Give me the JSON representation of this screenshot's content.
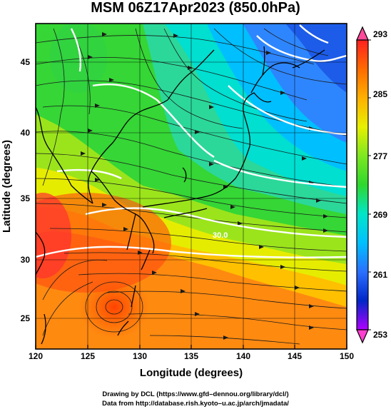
{
  "title": "MSM 06Z17Apr2023 (850.0hPa)",
  "map": {
    "xlabel": "Longitude (degrees)",
    "ylabel": "Latitude  (degrees)",
    "lon_ticks": [
      "120",
      "125",
      "130",
      "135",
      "140",
      "145",
      "150"
    ],
    "lat_ticks": [
      "25",
      "30",
      "35",
      "40",
      "45"
    ],
    "lon_range": [
      120,
      150
    ],
    "lat_range": [
      22.4,
      47.6
    ],
    "contour_labels": [
      "30.0"
    ],
    "field": "temperature",
    "overlay": "streamlines"
  },
  "colorbar": {
    "ticks": [
      "293",
      "285",
      "277",
      "269",
      "261",
      "253"
    ],
    "range": [
      253,
      293
    ],
    "colors": [
      "#ff3fa0",
      "#ff1a1a",
      "#ff6a00",
      "#ffb000",
      "#ffe600",
      "#b8f000",
      "#2ed82e",
      "#00e6c8",
      "#00c8ff",
      "#2a78ff",
      "#0026c8",
      "#b000ff"
    ]
  },
  "credits": {
    "line1": "Drawing by DCL (https://www.gfd–dennou.org/library/dcl/)",
    "line2": "Data from http://database.rish.kyoto–u.ac.jp/arch/jmadata/"
  }
}
